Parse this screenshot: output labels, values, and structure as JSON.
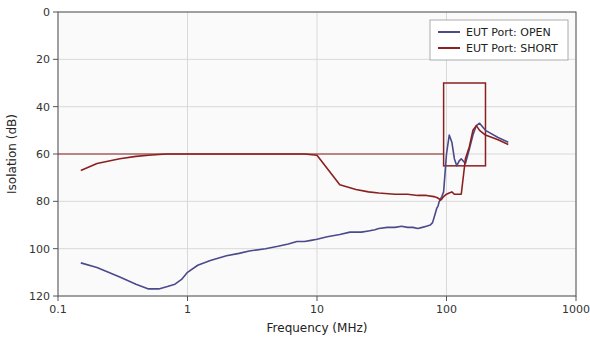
{
  "chart_data": {
    "type": "line",
    "xlabel": "Frequency (MHz)",
    "ylabel": "Isolation (dB)",
    "log": "x",
    "xlim": [
      0.1,
      1000
    ],
    "ylim": [
      120,
      0
    ],
    "xticks": [
      0.1,
      1,
      10,
      100,
      1000
    ],
    "yticks": [
      0,
      20,
      40,
      60,
      80,
      100,
      120
    ],
    "grid": true,
    "legend": "upper right",
    "series": [
      {
        "name": "EUT Port: OPEN",
        "color": "#4a4a8c",
        "x": [
          0.15,
          0.2,
          0.3,
          0.4,
          0.5,
          0.6,
          0.7,
          0.8,
          0.9,
          1.0,
          1.2,
          1.5,
          2.0,
          2.5,
          3.0,
          4.0,
          5.0,
          6.0,
          7.0,
          8.0,
          9.0,
          10.0,
          12.0,
          15.0,
          18.0,
          20.0,
          22.0,
          25.0,
          28.0,
          30.0,
          35.0,
          40.0,
          45.0,
          50.0,
          55.0,
          60.0,
          65.0,
          70.0,
          75.0,
          78.0,
          80.0,
          82.0,
          84.0,
          86.0,
          88.0,
          90.0,
          92.0,
          95.0,
          100.0,
          105.0,
          110.0,
          115.0,
          120.0,
          125.0,
          130.0,
          140.0,
          150.0,
          160.0,
          170.0,
          180.0,
          200.0,
          250.0,
          300.0
        ],
        "values": [
          106,
          108,
          112,
          115,
          117,
          117,
          116,
          115,
          113,
          110,
          107,
          105,
          103,
          102,
          101,
          100,
          99,
          98,
          97,
          97,
          96.5,
          96,
          95,
          94,
          93,
          93,
          93,
          92.5,
          92,
          91.5,
          91,
          91,
          90.5,
          91,
          91,
          91.5,
          91,
          90.5,
          90,
          89,
          87,
          85,
          83,
          82,
          80,
          79,
          78,
          76,
          60,
          52,
          55,
          62,
          65,
          63,
          62,
          64,
          58,
          52,
          48,
          47,
          50,
          53,
          55
        ]
      },
      {
        "name": "EUT Port: SHORT",
        "color": "#8b2020",
        "x": [
          0.15,
          0.2,
          0.3,
          0.4,
          0.5,
          0.6,
          0.7,
          0.8,
          0.9,
          1.0,
          1.5,
          2.0,
          3.0,
          4.0,
          5.0,
          6.0,
          8.0,
          10.0,
          15.0,
          20.0,
          25.0,
          30.0,
          40.0,
          50.0,
          60.0,
          70.0,
          80.0,
          85.0,
          88.0,
          90.0,
          92.0,
          95.0,
          100.0,
          105.0,
          110.0,
          115.0,
          120.0,
          130.0,
          140.0,
          150.0,
          160.0,
          170.0,
          180.0,
          200.0,
          250.0,
          300.0
        ],
        "values": [
          67,
          64,
          62,
          61,
          60.5,
          60.2,
          60,
          60,
          60,
          60,
          60,
          60,
          60,
          60,
          60,
          60,
          60,
          60.5,
          73,
          75,
          76,
          76.5,
          77,
          77,
          77.5,
          77.5,
          78,
          78.5,
          79,
          79.5,
          79,
          78,
          77,
          76.5,
          76,
          77,
          77,
          77,
          62,
          57,
          50,
          48,
          50,
          52,
          54,
          56
        ]
      }
    ],
    "annotations": [
      {
        "type": "hline",
        "y": 60,
        "x": [
          0.1,
          95
        ],
        "color": "#8b2020"
      },
      {
        "type": "rect",
        "x": [
          95,
          200
        ],
        "y": [
          30,
          65
        ],
        "color": "#8b2020"
      }
    ]
  }
}
